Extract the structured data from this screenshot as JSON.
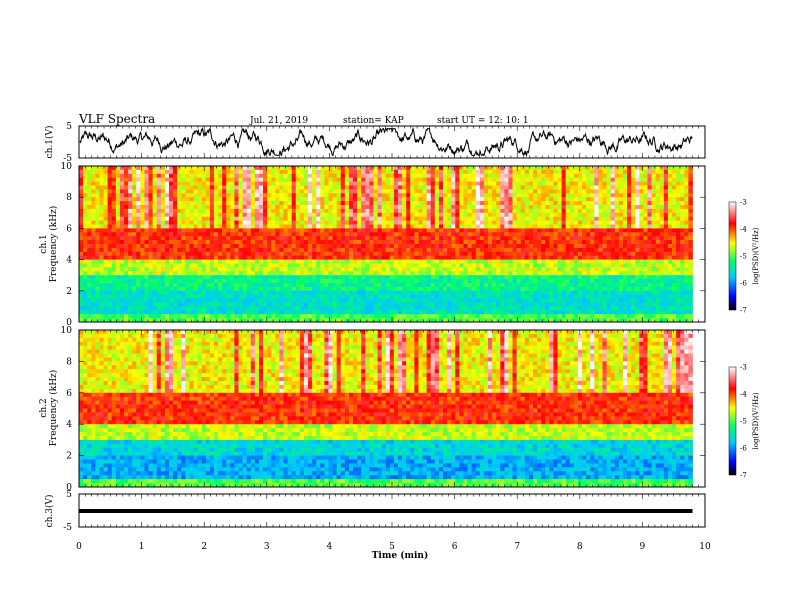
{
  "header": {
    "title": "VLF Spectra",
    "date": "Jul. 21, 2019",
    "station": "station= KAP",
    "start": "start  UT =   12: 10: 1"
  },
  "chart_data": {
    "type": "heatmap",
    "xlabel": "Time (min)",
    "xlim": [
      0,
      10
    ],
    "x_ticks": [
      "0",
      "1",
      "2",
      "3",
      "4",
      "5",
      "6",
      "7",
      "8",
      "9",
      "10"
    ],
    "panels": [
      {
        "id": "ch1_wave",
        "type": "line",
        "ylabel": "ch.1(V)",
        "ylim": [
          -5,
          5
        ],
        "y_ticks": [
          "5",
          "-5"
        ],
        "data_extent_min": 9.8,
        "series_color": "#000000"
      },
      {
        "id": "ch1_spec",
        "type": "heatmap",
        "title": "ch.1",
        "ylabel": "Frequency (kHz)",
        "ylim": [
          0,
          10
        ],
        "y_ticks": [
          "0",
          "2",
          "4",
          "6",
          "8",
          "10"
        ],
        "colorbar": {
          "label": "log(PSD)(V²/Hz)",
          "range": [
            -7,
            -3
          ],
          "ticks": [
            "-3",
            "-4",
            "-5",
            "-6",
            "-7"
          ]
        },
        "intense_band_khz": [
          4,
          6
        ],
        "weak_band_khz": [
          0.5,
          3
        ]
      },
      {
        "id": "ch2_spec",
        "type": "heatmap",
        "title": "ch.2",
        "ylabel": "Frequency (kHz)",
        "ylim": [
          0,
          10
        ],
        "y_ticks": [
          "0",
          "2",
          "4",
          "6",
          "8",
          "10"
        ],
        "colorbar": {
          "label": "log(PSD)(V²/Hz)",
          "range": [
            -7,
            -3
          ],
          "ticks": [
            "-3",
            "-4",
            "-5",
            "-6",
            "-7"
          ]
        },
        "intense_band_khz": [
          4,
          6
        ],
        "weak_band_khz": [
          0.5,
          3
        ]
      },
      {
        "id": "ch3_wave",
        "type": "line",
        "ylabel": "ch.3(V)",
        "ylim": [
          -5,
          5
        ],
        "y_ticks": [
          "5",
          "-5"
        ],
        "data_extent_min": 9.8,
        "constant_value_v": 0,
        "series_color": "#000000"
      }
    ]
  }
}
